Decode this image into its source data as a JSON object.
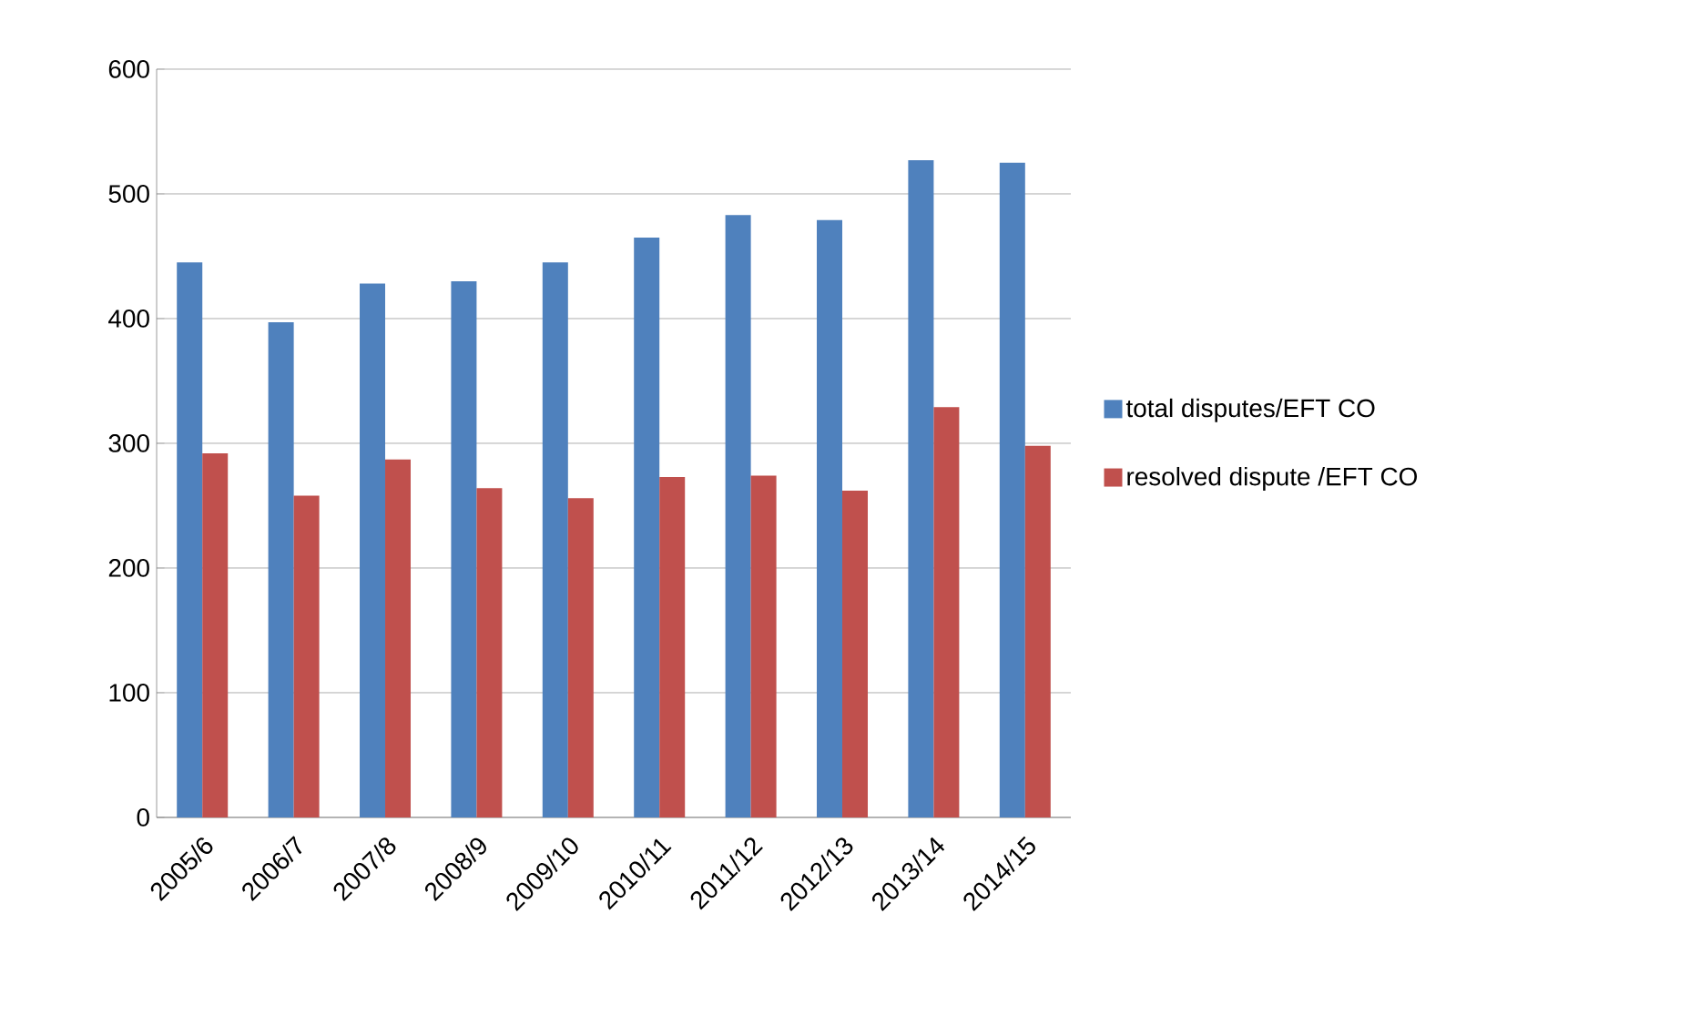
{
  "chart_data": {
    "type": "bar",
    "categories": [
      "2005/6",
      "2006/7",
      "2007/8",
      "2008/9",
      "2009/10",
      "2010/11",
      "2011/12",
      "2012/13",
      "2013/14",
      "2014/15"
    ],
    "series": [
      {
        "name": "total disputes/EFT CO",
        "color": "#4f81bd",
        "values": [
          445,
          397,
          428,
          430,
          445,
          465,
          483,
          479,
          527,
          525
        ]
      },
      {
        "name": "resolved dispute /EFT CO",
        "color": "#c0504d",
        "values": [
          292,
          258,
          287,
          264,
          256,
          273,
          274,
          262,
          329,
          298
        ]
      }
    ],
    "ylim": [
      0,
      600
    ],
    "yticks": [
      0,
      100,
      200,
      300,
      400,
      500,
      600
    ],
    "grid": "y",
    "legend": "right"
  }
}
